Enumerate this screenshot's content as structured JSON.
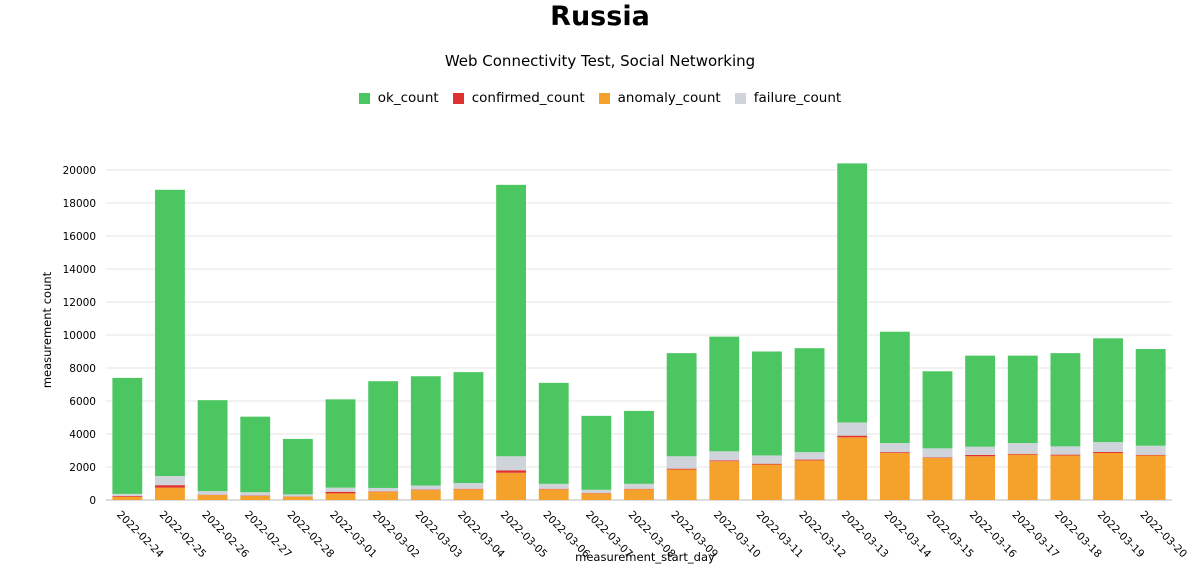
{
  "chart_data": {
    "type": "bar",
    "title": "Russia",
    "subtitle": "Web Connectivity Test, Social Networking",
    "xlabel": "measurement_start_day",
    "ylabel": "measurement count",
    "ylim": [
      0,
      20000
    ],
    "yticks": [
      "0",
      "2000",
      "4000",
      "6000",
      "8000",
      "10000",
      "12000",
      "14000",
      "16000",
      "18000",
      "20000"
    ],
    "grid": true,
    "stacked": true,
    "legend_position": "top-center",
    "categories": [
      "2022-02-24",
      "2022-02-25",
      "2022-02-26",
      "2022-02-27",
      "2022-02-28",
      "2022-03-01",
      "2022-03-02",
      "2022-03-03",
      "2022-03-04",
      "2022-03-05",
      "2022-03-06",
      "2022-03-07",
      "2022-03-08",
      "2022-03-09",
      "2022-03-10",
      "2022-03-11",
      "2022-03-12",
      "2022-03-13",
      "2022-03-14",
      "2022-03-15",
      "2022-03-16",
      "2022-03-17",
      "2022-03-18",
      "2022-03-19",
      "2022-03-20"
    ],
    "series": [
      {
        "name": "anomaly_count",
        "color": "#f5a22c",
        "values": [
          200,
          750,
          300,
          250,
          200,
          400,
          500,
          600,
          650,
          1650,
          650,
          400,
          650,
          1850,
          2350,
          2150,
          2400,
          3800,
          2850,
          2550,
          2650,
          2750,
          2700,
          2850,
          2700
        ]
      },
      {
        "name": "confirmed_count",
        "color": "#e03131",
        "values": [
          50,
          150,
          20,
          20,
          20,
          100,
          30,
          30,
          30,
          150,
          30,
          20,
          30,
          50,
          50,
          50,
          50,
          100,
          50,
          30,
          80,
          50,
          50,
          60,
          40
        ]
      },
      {
        "name": "failure_count",
        "color": "#ced4da",
        "values": [
          120,
          550,
          220,
          200,
          120,
          250,
          200,
          250,
          350,
          850,
          300,
          200,
          300,
          750,
          550,
          500,
          450,
          800,
          550,
          550,
          500,
          650,
          500,
          600,
          550
        ]
      },
      {
        "name": "ok_count",
        "color": "#4cc660",
        "values": [
          7030,
          17350,
          5510,
          4580,
          3360,
          5350,
          6470,
          6620,
          6720,
          16450,
          6120,
          4480,
          4420,
          6250,
          6950,
          6300,
          6300,
          15700,
          6750,
          4670,
          5520,
          5300,
          5650,
          6290,
          5860
        ]
      }
    ],
    "legend": [
      {
        "name": "ok_count",
        "color": "#4cc660"
      },
      {
        "name": "confirmed_count",
        "color": "#e03131"
      },
      {
        "name": "anomaly_count",
        "color": "#f5a22c"
      },
      {
        "name": "failure_count",
        "color": "#ced4da"
      }
    ]
  }
}
